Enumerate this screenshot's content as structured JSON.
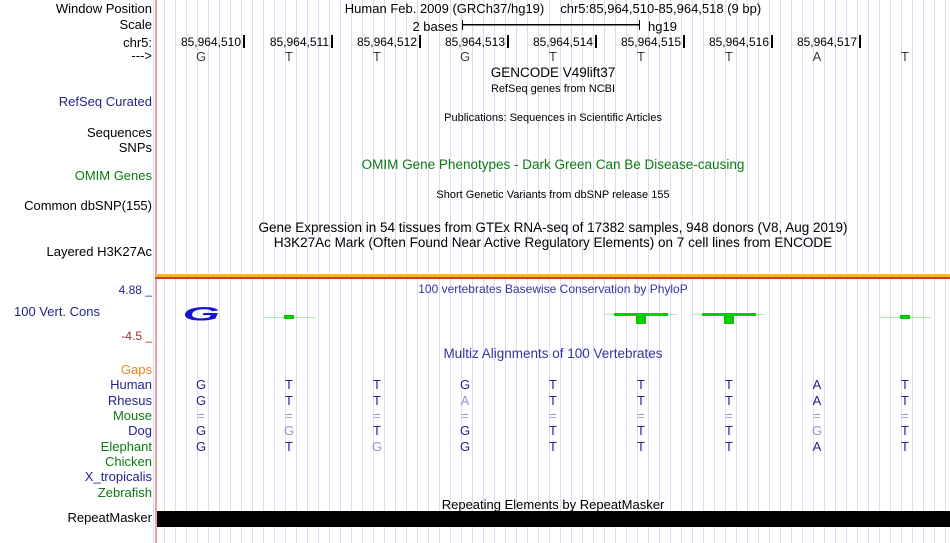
{
  "colors": {
    "navy": "#24248c",
    "light_base": "#9494cc",
    "green": "#0d7813",
    "orange": "#ef8318",
    "blue_title": "#34349f",
    "dark_red": "#93312b",
    "logo_blue": "#1414cf",
    "bright_green": "#00cc00",
    "light_green": "#aaeeaa",
    "guideline_pink": "#f2a0a0",
    "gridline": "#dcdcf2",
    "h3k27ac_orange": "#ffac45",
    "h3k27ac_red": "#c5442c",
    "sequence_gray": "#3f3f3f"
  },
  "header": {
    "assembly_title": "Human Feb. 2009 (GRCh37/hg19)",
    "position_title": "chr5:85,964,510-85,964,518 (9 bp)",
    "window_position_label": "Window Position",
    "scale_label": "Scale",
    "chrom_label": "chr5:",
    "strand_arrow": "--->",
    "scale_bar_label": "2 bases",
    "scale_bar_assembly": "hg19",
    "coordinates": [
      "85,964,510",
      "85,964,511",
      "85,964,512",
      "85,964,513",
      "85,964,514",
      "85,964,515",
      "85,964,516",
      "85,964,517"
    ],
    "sequence": [
      "G",
      "T",
      "T",
      "G",
      "T",
      "T",
      "T",
      "A",
      "T"
    ]
  },
  "track_labels": {
    "refseq": "RefSeq Curated",
    "sequences": "Sequences",
    "snps": "SNPs",
    "omim": "OMIM Genes",
    "dbsnp": "Common dbSNP(155)",
    "h3k27ac": "Layered H3K27Ac",
    "cons": "100 Vert. Cons",
    "repeatmasker": "RepeatMasker"
  },
  "center_titles": {
    "gencode": "GENCODE V49lift37",
    "refseq_sub": "RefSeq genes from NCBI",
    "publications": "Publications: Sequences in Scientific Articles",
    "omim": "OMIM Gene Phenotypes - Dark Green Can Be Disease-causing",
    "dbsnp": "Short Genetic Variants from dbSNP release 155",
    "gtex": "Gene Expression in 54 tissues from GTEx RNA-seq of 17382 samples, 948 donors (V8, Aug 2019)",
    "h3k27ac": "H3K27Ac Mark (Often Found Near Active Regulatory Elements) on 7 cell lines from ENCODE",
    "phylop": "100 vertebrates Basewise Conservation by PhyloP",
    "multiz": "Multiz Alignments of 100 Vertebrates",
    "repeatmasker": "Repeating Elements by RepeatMasker"
  },
  "conservation": {
    "scale_max": "4.88 _",
    "scale_min": "-4.5 _",
    "logo": [
      {
        "col": 0,
        "kind": "big_letter",
        "letter": "G"
      },
      {
        "col": 1,
        "kind": "small_dash"
      },
      {
        "col": 5,
        "kind": "green_T"
      },
      {
        "col": 6,
        "kind": "green_T"
      },
      {
        "col": 8,
        "kind": "small_dash"
      }
    ]
  },
  "alignment": {
    "rows": [
      {
        "name": "Gaps",
        "label_color": "orange",
        "cells": []
      },
      {
        "name": "Human",
        "label_color": "navy",
        "cells": [
          {
            "b": "G"
          },
          {
            "b": "T"
          },
          {
            "b": "T"
          },
          {
            "b": "G"
          },
          {
            "b": "T"
          },
          {
            "b": "T"
          },
          {
            "b": "T"
          },
          {
            "b": "A"
          },
          {
            "b": "T"
          }
        ]
      },
      {
        "name": "Rhesus",
        "label_color": "navy",
        "cells": [
          {
            "b": "G"
          },
          {
            "b": "T"
          },
          {
            "b": "T"
          },
          {
            "b": "A",
            "light": true
          },
          {
            "b": "T"
          },
          {
            "b": "T"
          },
          {
            "b": "T"
          },
          {
            "b": "A"
          },
          {
            "b": "T"
          }
        ]
      },
      {
        "name": "Mouse",
        "label_color": "green",
        "cells": [
          {
            "b": "=",
            "light": true
          },
          {
            "b": "=",
            "light": true
          },
          {
            "b": "=",
            "light": true
          },
          {
            "b": "=",
            "light": true
          },
          {
            "b": "=",
            "light": true
          },
          {
            "b": "=",
            "light": true
          },
          {
            "b": "=",
            "light": true
          },
          {
            "b": "=",
            "light": true
          },
          {
            "b": "=",
            "light": true
          }
        ]
      },
      {
        "name": "Dog",
        "label_color": "navy",
        "cells": [
          {
            "b": "G"
          },
          {
            "b": "G",
            "light": true
          },
          {
            "b": "T"
          },
          {
            "b": "G"
          },
          {
            "b": "T"
          },
          {
            "b": "T"
          },
          {
            "b": "T"
          },
          {
            "b": "G",
            "light": true
          },
          {
            "b": "T"
          }
        ]
      },
      {
        "name": "Elephant",
        "label_color": "green",
        "cells": [
          {
            "b": "G"
          },
          {
            "b": "T"
          },
          {
            "b": "G",
            "light": true
          },
          {
            "b": "G"
          },
          {
            "b": "T"
          },
          {
            "b": "T"
          },
          {
            "b": "T"
          },
          {
            "b": "A"
          },
          {
            "b": "T"
          }
        ]
      },
      {
        "name": "Chicken",
        "label_color": "green",
        "cells": []
      },
      {
        "name": "X_tropicalis",
        "label_color": "navy",
        "cells": []
      },
      {
        "name": "Zebrafish",
        "label_color": "green",
        "cells": []
      }
    ]
  }
}
